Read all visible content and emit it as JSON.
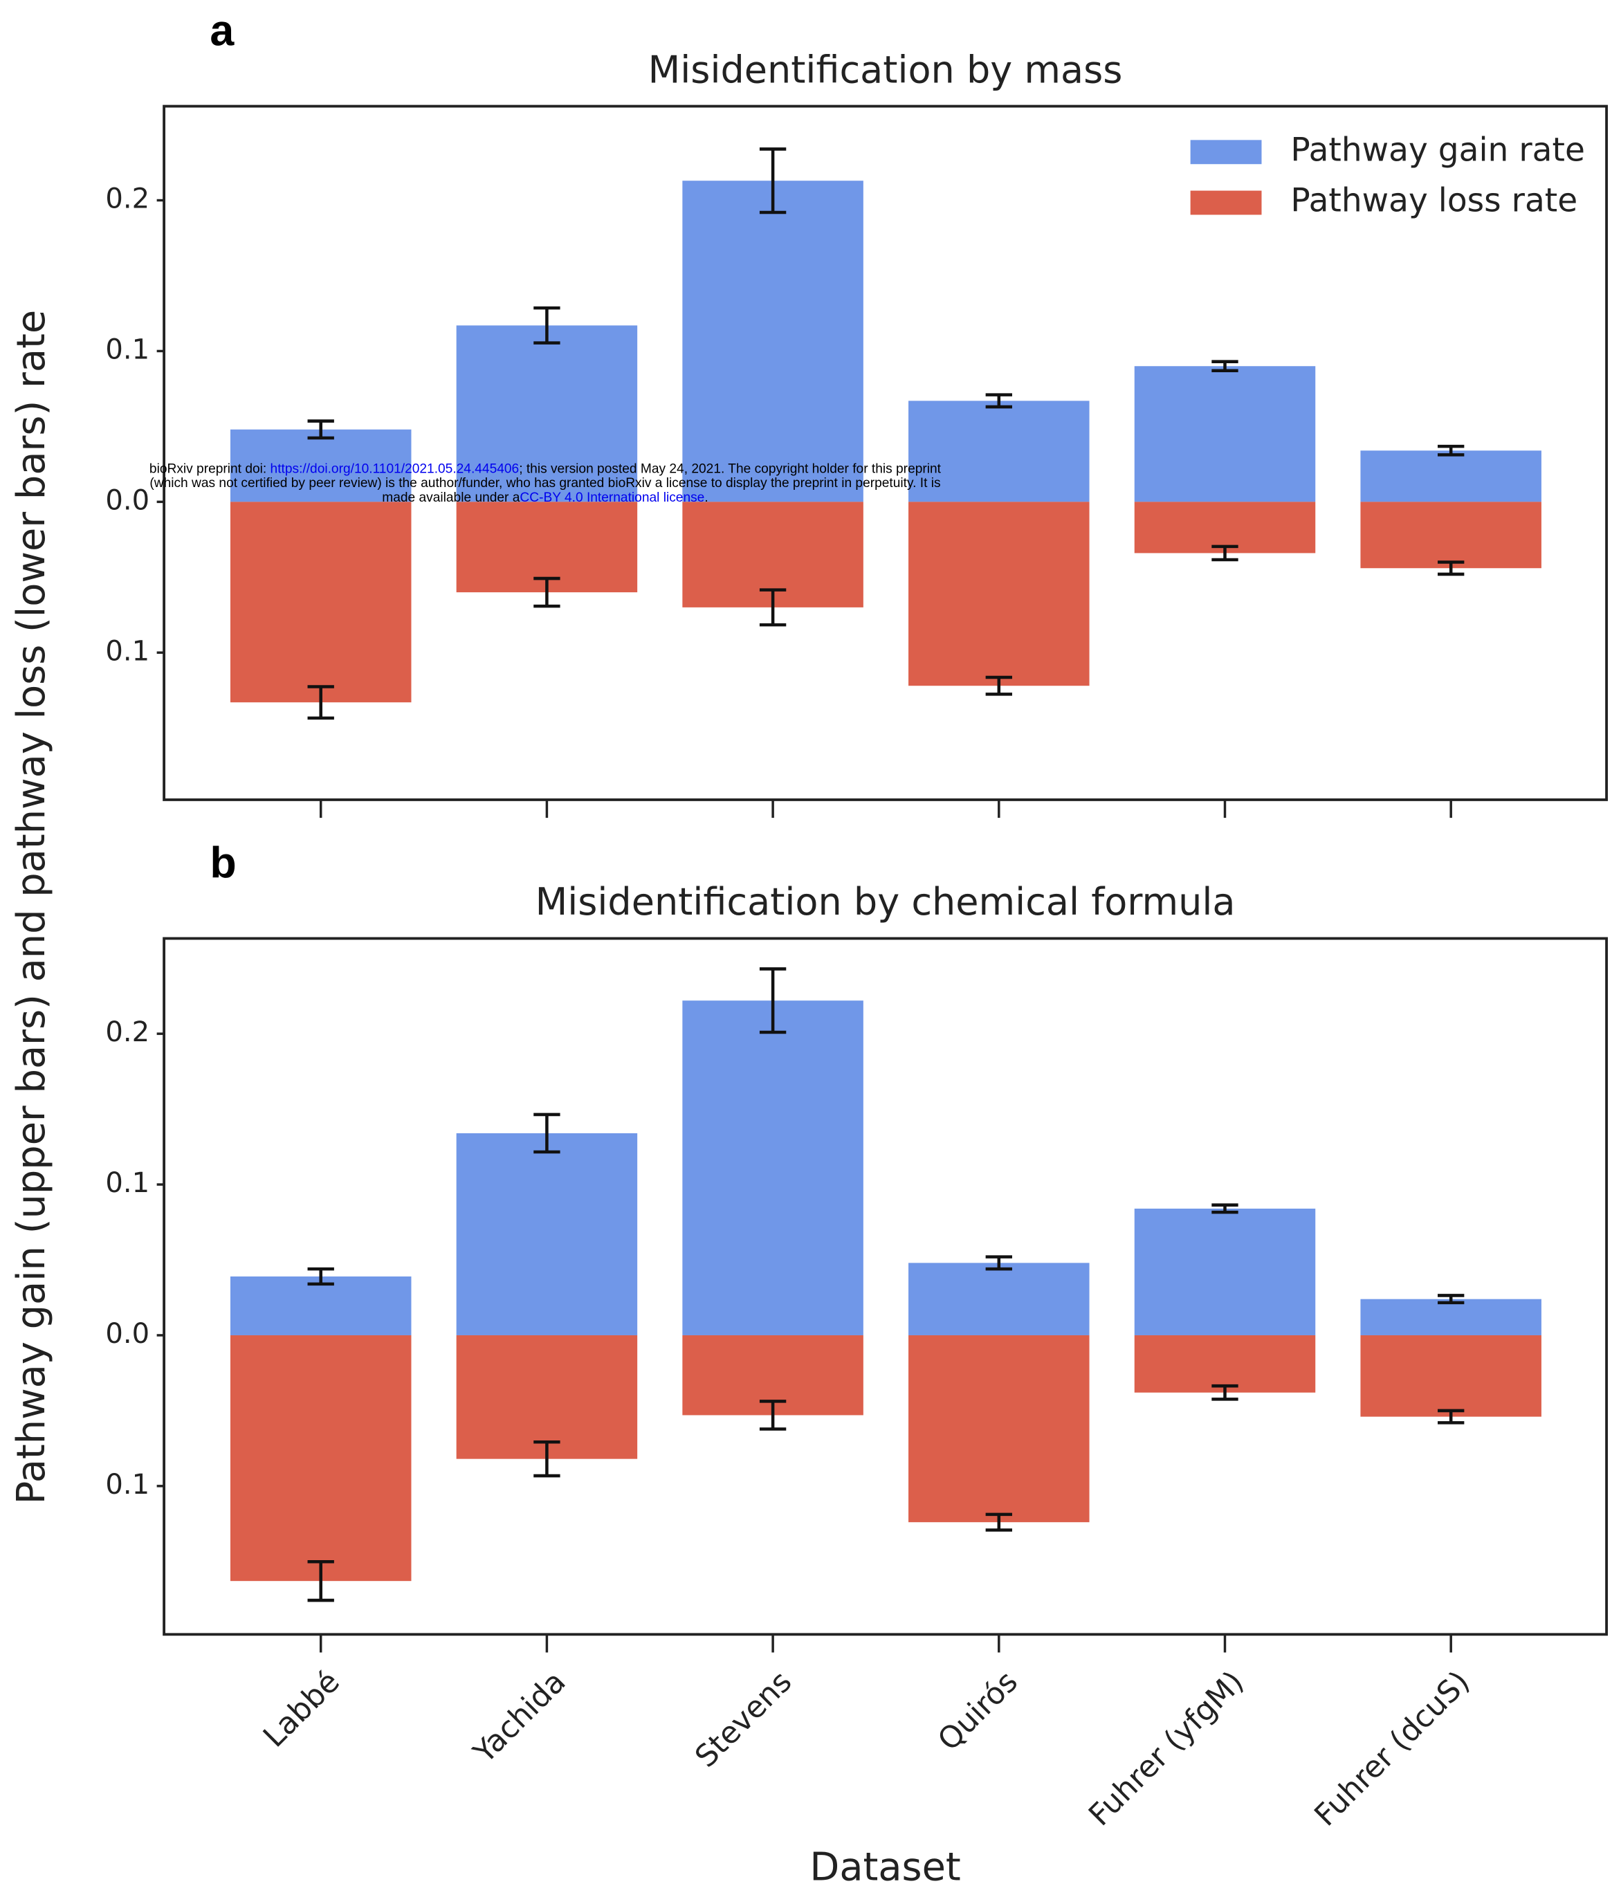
{
  "watermark": {
    "lines": [
      [
        "bioRxiv preprint doi: ",
        "https://doi.org/10.1101/2021.05.24.445406",
        "; this version posted May 24, 2021. The copyright holder for this preprint"
      ],
      [
        "(which was not certified by peer review) is the author/funder, who has granted bioRxiv a license to display the preprint in perpetuity. It is"
      ],
      [
        "made available under a",
        "CC-BY 4.0 International license",
        "."
      ]
    ]
  },
  "chart_data": [
    {
      "type": "bar",
      "panel": "a",
      "title": "Misidentification by mass",
      "ylabel": "Pathway gain (upper bars) and pathway loss (lower bars) rate",
      "categories": [
        null,
        null,
        null,
        null,
        null,
        null
      ],
      "series": [
        {
          "name": "Pathway gain rate",
          "color": "#7097e8",
          "values": [
            0.048,
            0.117,
            0.213,
            0.067,
            0.09,
            0.034
          ],
          "errors": [
            0.0056,
            0.0116,
            0.021,
            0.004,
            0.003,
            0.0028
          ]
        },
        {
          "name": "Pathway loss rate",
          "color": "#dc5f4b",
          "values": [
            -0.133,
            -0.06,
            -0.07,
            -0.122,
            -0.034,
            -0.044
          ],
          "errors": [
            0.0104,
            0.0092,
            0.0116,
            0.0056,
            0.0044,
            0.004
          ]
        }
      ],
      "ylim": [
        -0.1976,
        0.2624
      ],
      "yticks": [
        {
          "value": -0.1,
          "label": "0.1"
        },
        {
          "value": 0,
          "label": "0.0"
        },
        0.1,
        0.2
      ],
      "legend": "upper right"
    },
    {
      "type": "bar",
      "panel": "b",
      "title": "Misidentification by chemical formula",
      "xlabel": "Dataset",
      "categories": [
        "Labbé",
        "Yachida",
        "Stevens",
        "Quirós",
        "Fuhrer (yfgM)",
        "Fuhrer (dcuS)"
      ],
      "series": [
        {
          "color": "#7097e8",
          "values": [
            0.039,
            0.134,
            0.222,
            0.048,
            0.084,
            0.024
          ],
          "errors": [
            0.005,
            0.0124,
            0.021,
            0.004,
            0.0024,
            0.0024
          ]
        },
        {
          "color": "#dc5f4b",
          "values": [
            -0.163,
            -0.082,
            -0.053,
            -0.124,
            -0.038,
            -0.054
          ],
          "errors": [
            0.0128,
            0.0112,
            0.0092,
            0.0052,
            0.0044,
            0.004
          ]
        }
      ],
      "ylim": [
        -0.1984,
        0.2632
      ],
      "yticks": [
        {
          "value": -0.1,
          "label": "0.1"
        },
        {
          "value": 0,
          "label": "0.0"
        },
        0.1,
        0.2
      ]
    }
  ]
}
